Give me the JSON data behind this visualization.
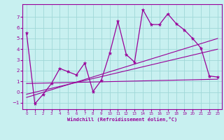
{
  "title": "",
  "xlabel": "Windchill (Refroidissement éolien,°C)",
  "bg_color": "#c8f0f0",
  "grid_color": "#a0d8d8",
  "line_color": "#990099",
  "xlim": [
    -0.5,
    23.5
  ],
  "ylim": [
    -1.6,
    8.2
  ],
  "yticks": [
    -1,
    0,
    1,
    2,
    3,
    4,
    5,
    6,
    7
  ],
  "xticks": [
    0,
    1,
    2,
    3,
    4,
    5,
    6,
    7,
    8,
    9,
    10,
    11,
    12,
    13,
    14,
    15,
    16,
    17,
    18,
    19,
    20,
    21,
    22,
    23
  ],
  "main_line_x": [
    0,
    1,
    2,
    3,
    4,
    5,
    6,
    7,
    8,
    9,
    10,
    11,
    12,
    13,
    14,
    15,
    16,
    17,
    18,
    19,
    20,
    21,
    22,
    23
  ],
  "main_line_y": [
    5.5,
    -1.1,
    -0.2,
    0.8,
    2.2,
    1.9,
    1.6,
    2.7,
    0.05,
    1.1,
    3.6,
    6.6,
    3.5,
    2.8,
    7.7,
    6.3,
    6.3,
    7.3,
    6.4,
    5.8,
    5.0,
    4.1,
    1.5,
    1.4
  ],
  "reg_line1_x": [
    0,
    23
  ],
  "reg_line1_y": [
    -0.5,
    5.0
  ],
  "reg_line2_x": [
    0,
    23
  ],
  "reg_line2_y": [
    -0.2,
    4.0
  ],
  "reg_line3_x": [
    0,
    23
  ],
  "reg_line3_y": [
    0.8,
    1.2
  ]
}
